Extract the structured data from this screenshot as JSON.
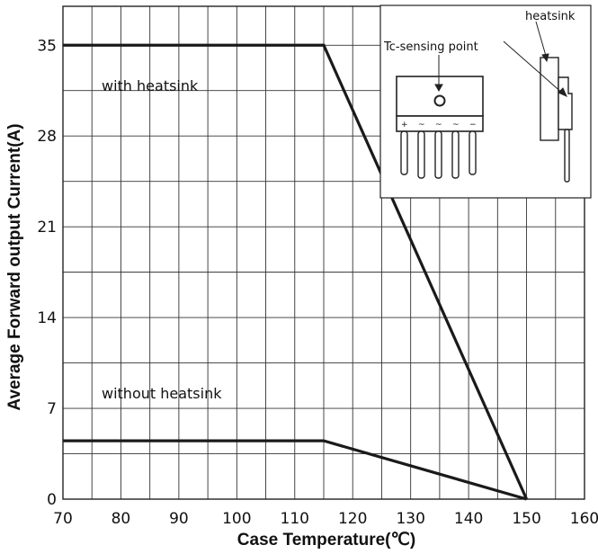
{
  "chart_data": {
    "type": "line",
    "xlabel": "Case Temperature(℃)",
    "ylabel": "Average Forward output Current(A)",
    "xlim": [
      70,
      160
    ],
    "ylim": [
      0,
      38
    ],
    "x_ticks": [
      "70",
      "80",
      "90",
      "100",
      "110",
      "120",
      "130",
      "140",
      "150",
      "160"
    ],
    "y_ticks": [
      "0",
      "7",
      "14",
      "21",
      "28",
      "35"
    ],
    "x_tick_values": [
      70,
      80,
      90,
      100,
      110,
      120,
      130,
      140,
      150,
      160
    ],
    "y_tick_values": [
      0,
      7,
      14,
      21,
      28,
      35
    ],
    "grid": true,
    "series": [
      {
        "name": "with heatsink",
        "x": [
          70,
          115,
          150
        ],
        "y": [
          35,
          35,
          0
        ]
      },
      {
        "name": "without heatsink",
        "x": [
          70,
          115,
          150
        ],
        "y": [
          4.5,
          4.5,
          0
        ]
      }
    ],
    "annotations": {
      "with_heatsink": "with heatsink",
      "without_heatsink": "without heatsink",
      "heatsink": "heatsink",
      "tc_sensing_point": "Tc-sensing point"
    },
    "pin_labels": [
      "+",
      "~",
      "~",
      "~",
      "−"
    ]
  }
}
